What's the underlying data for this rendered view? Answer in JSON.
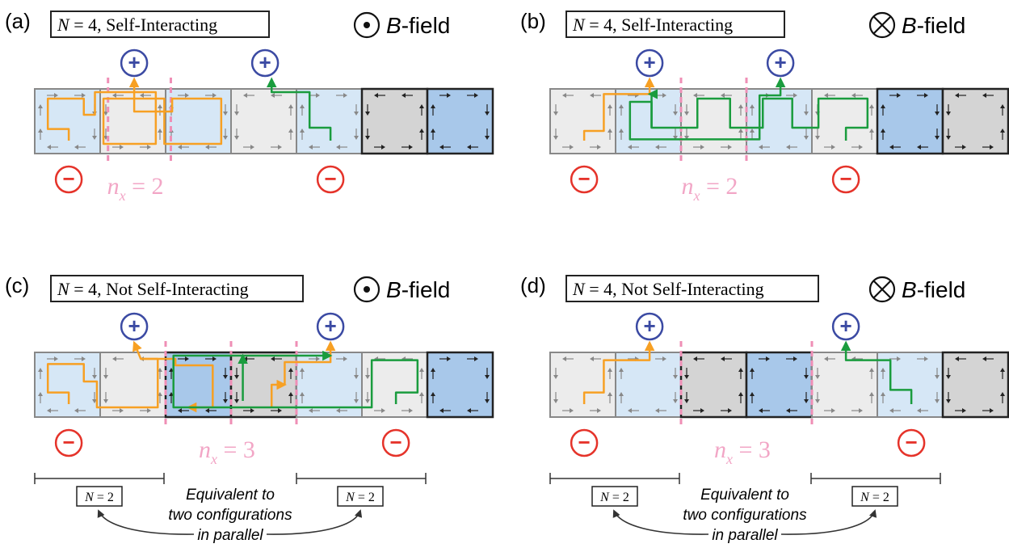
{
  "panels": [
    {
      "letter": "(a)",
      "title_prefix": "N",
      "title_rest": " = 4, Self-Interacting",
      "field_symbol": "dot",
      "field_label_italic": "B",
      "field_label_rest": "-field",
      "cell_types": [
        "lb",
        "lg",
        "lb",
        "lg",
        "lb",
        "dg",
        "db"
      ],
      "dividers": [
        1.12,
        2.08
      ],
      "nx_label": "n",
      "nx_sub": "x",
      "nx_value": " = 2",
      "plus_at": [
        1.52,
        3.52
      ],
      "minus_at": [
        0.52,
        4.52
      ],
      "paths": [
        {
          "color": "#f7a023",
          "points": [
            [
              0.52,
              0.8
            ],
            [
              0.52,
              0.62
            ],
            [
              0.2,
              0.62
            ],
            [
              0.2,
              0.15
            ],
            [
              0.75,
              0.15
            ],
            [
              0.75,
              0.4
            ],
            [
              0.92,
              0.4
            ],
            [
              0.92,
              0.05
            ],
            [
              1.85,
              0.05
            ],
            [
              1.85,
              0.85
            ],
            [
              1.05,
              0.85
            ],
            [
              1.05,
              0.15
            ],
            [
              1.98,
              0.15
            ],
            [
              1.98,
              0.85
            ],
            [
              2.85,
              0.85
            ],
            [
              2.85,
              0.15
            ],
            [
              2.1,
              0.15
            ],
            [
              2.1,
              0.35
            ],
            [
              1.52,
              0.35
            ],
            [
              1.52,
              -0.15
            ]
          ],
          "comment": "orange current path"
        },
        {
          "color": "#1a9c3e",
          "points": [
            [
              4.52,
              0.8
            ],
            [
              4.52,
              0.6
            ],
            [
              4.2,
              0.6
            ],
            [
              4.2,
              0.05
            ],
            [
              3.62,
              0.05
            ],
            [
              3.62,
              -0.15
            ]
          ]
        }
      ]
    },
    {
      "letter": "(b)",
      "title_prefix": "N",
      "title_rest": " = 4, Self-Interacting",
      "field_symbol": "cross",
      "field_label_italic": "B",
      "field_label_rest": "-field",
      "cell_types": [
        "lg",
        "lb",
        "lg",
        "lb",
        "lg",
        "db",
        "dg"
      ],
      "dividers": [
        2.0,
        3.0
      ],
      "nx_label": "n",
      "nx_sub": "x",
      "nx_value": " = 2",
      "plus_at": [
        1.52,
        3.52
      ],
      "minus_at": [
        0.52,
        4.52
      ],
      "paths": [
        {
          "color": "#f7a023",
          "points": [
            [
              0.52,
              0.8
            ],
            [
              0.52,
              0.65
            ],
            [
              0.82,
              0.65
            ],
            [
              0.82,
              0.08
            ],
            [
              1.52,
              0.08
            ],
            [
              1.52,
              -0.15
            ]
          ]
        },
        {
          "color": "#1a9c3e",
          "points": [
            [
              4.52,
              0.8
            ],
            [
              4.52,
              0.6
            ],
            [
              4.85,
              0.6
            ],
            [
              4.85,
              0.15
            ],
            [
              4.1,
              0.15
            ],
            [
              4.1,
              0.6
            ],
            [
              3.7,
              0.6
            ],
            [
              3.7,
              0.15
            ],
            [
              3.25,
              0.15
            ],
            [
              3.25,
              0.6
            ],
            [
              2.75,
              0.6
            ],
            [
              2.75,
              0.15
            ],
            [
              2.25,
              0.15
            ],
            [
              2.25,
              0.6
            ],
            [
              1.55,
              0.6
            ],
            [
              1.55,
              0.2
            ],
            [
              1.22,
              0.2
            ],
            [
              1.22,
              0.78
            ],
            [
              3.2,
              0.78
            ],
            [
              3.2,
              0.1
            ],
            [
              3.52,
              0.1
            ],
            [
              3.52,
              -0.15
            ]
          ]
        },
        {
          "color": "#1a9c3e",
          "points": [
            [
              1.55,
              0.6
            ],
            [
              1.55,
              0.08
            ],
            [
              1.52,
              0.08
            ]
          ]
        }
      ]
    },
    {
      "letter": "(c)",
      "title_prefix": "N",
      "title_rest": " = 4, Not Self-Interacting",
      "field_symbol": "dot",
      "field_label_italic": "B",
      "field_label_rest": "-field",
      "cell_types": [
        "lb",
        "lg",
        "db",
        "dg",
        "lb",
        "lg",
        "db"
      ],
      "dividers": [
        2.0,
        3.0,
        4.0
      ],
      "nx_label": "n",
      "nx_sub": "x",
      "nx_value": " = 3",
      "plus_at": [
        1.52,
        4.52
      ],
      "minus_at": [
        0.52,
        5.52
      ],
      "paths": [
        {
          "color": "#f7a023",
          "points": [
            [
              0.52,
              0.8
            ],
            [
              0.52,
              0.62
            ],
            [
              0.2,
              0.62
            ],
            [
              0.2,
              0.18
            ],
            [
              0.75,
              0.18
            ],
            [
              0.75,
              0.45
            ],
            [
              0.95,
              0.45
            ],
            [
              0.95,
              0.85
            ],
            [
              1.88,
              0.85
            ],
            [
              1.88,
              0.1
            ],
            [
              1.62,
              0.1
            ],
            [
              1.52,
              -0.15
            ]
          ]
        },
        {
          "color": "#f7a023",
          "points": [
            [
              1.62,
              0.1
            ],
            [
              2.15,
              0.1
            ],
            [
              2.15,
              0.2
            ],
            [
              2.72,
              0.2
            ],
            [
              2.72,
              0.85
            ],
            [
              2.35,
              0.85
            ]
          ]
        },
        {
          "color": "#f7a023",
          "points": [
            [
              3.82,
              0.5
            ],
            [
              3.82,
              0.15
            ],
            [
              4.52,
              0.15
            ],
            [
              4.52,
              -0.15
            ]
          ]
        },
        {
          "color": "#f7a023",
          "points": [
            [
              3.62,
              0.85
            ],
            [
              3.62,
              0.5
            ],
            [
              3.82,
              0.5
            ]
          ]
        },
        {
          "color": "#1a9c3e",
          "points": [
            [
              5.52,
              0.8
            ],
            [
              5.52,
              0.62
            ],
            [
              5.85,
              0.62
            ],
            [
              5.85,
              0.12
            ],
            [
              5.15,
              0.12
            ],
            [
              5.15,
              0.85
            ],
            [
              2.12,
              0.85
            ],
            [
              2.12,
              0.05
            ],
            [
              4.52,
              0.05
            ]
          ]
        },
        {
          "color": "#1a9c3e",
          "points": [
            [
              3.18,
              0.75
            ],
            [
              3.18,
              0.05
            ]
          ]
        }
      ]
    },
    {
      "letter": "(d)",
      "title_prefix": "N",
      "title_rest": " = 4, Not Self-Interacting",
      "field_symbol": "cross",
      "field_label_italic": "B",
      "field_label_rest": "-field",
      "cell_types": [
        "lg",
        "lb",
        "dg",
        "db",
        "lg",
        "lb",
        "dg"
      ],
      "dividers": [
        2.0,
        4.0
      ],
      "nx_label": "n",
      "nx_sub": "x",
      "nx_value": " = 3",
      "plus_at": [
        1.52,
        4.52
      ],
      "minus_at": [
        0.52,
        5.52
      ],
      "paths": [
        {
          "color": "#f7a023",
          "points": [
            [
              0.52,
              0.8
            ],
            [
              0.52,
              0.62
            ],
            [
              0.82,
              0.62
            ],
            [
              0.82,
              0.12
            ],
            [
              1.52,
              0.12
            ],
            [
              1.52,
              -0.15
            ]
          ]
        },
        {
          "color": "#1a9c3e",
          "points": [
            [
              5.52,
              0.8
            ],
            [
              5.52,
              0.58
            ],
            [
              5.2,
              0.58
            ],
            [
              5.2,
              0.12
            ],
            [
              4.52,
              0.12
            ],
            [
              4.52,
              -0.15
            ]
          ]
        }
      ]
    }
  ],
  "bottom_left": {
    "box_prefix": "N",
    "box_rest": " = 2",
    "text_lines": [
      "Equivalent to",
      "two configurations",
      "in parallel"
    ]
  },
  "bottom_right": {
    "box_prefix": "N",
    "box_rest": " = 2",
    "text_lines": [
      "Equivalent to",
      "two configurations",
      "in parallel"
    ]
  },
  "symbols": {
    "plus": "+",
    "minus": "−"
  },
  "colors": {
    "plus_circle": "#3b4aa3",
    "minus_circle": "#e5332a",
    "orange_path": "#f7a023",
    "green_path": "#1a9c3e",
    "divider": "#ef8fb6",
    "nx_label": "#f2a6c6",
    "light_blue_cell": "#d6e7f6",
    "dark_blue_cell": "#a8c8ea",
    "light_gray_cell": "#ececec",
    "dark_gray_cell": "#d4d4d4"
  }
}
